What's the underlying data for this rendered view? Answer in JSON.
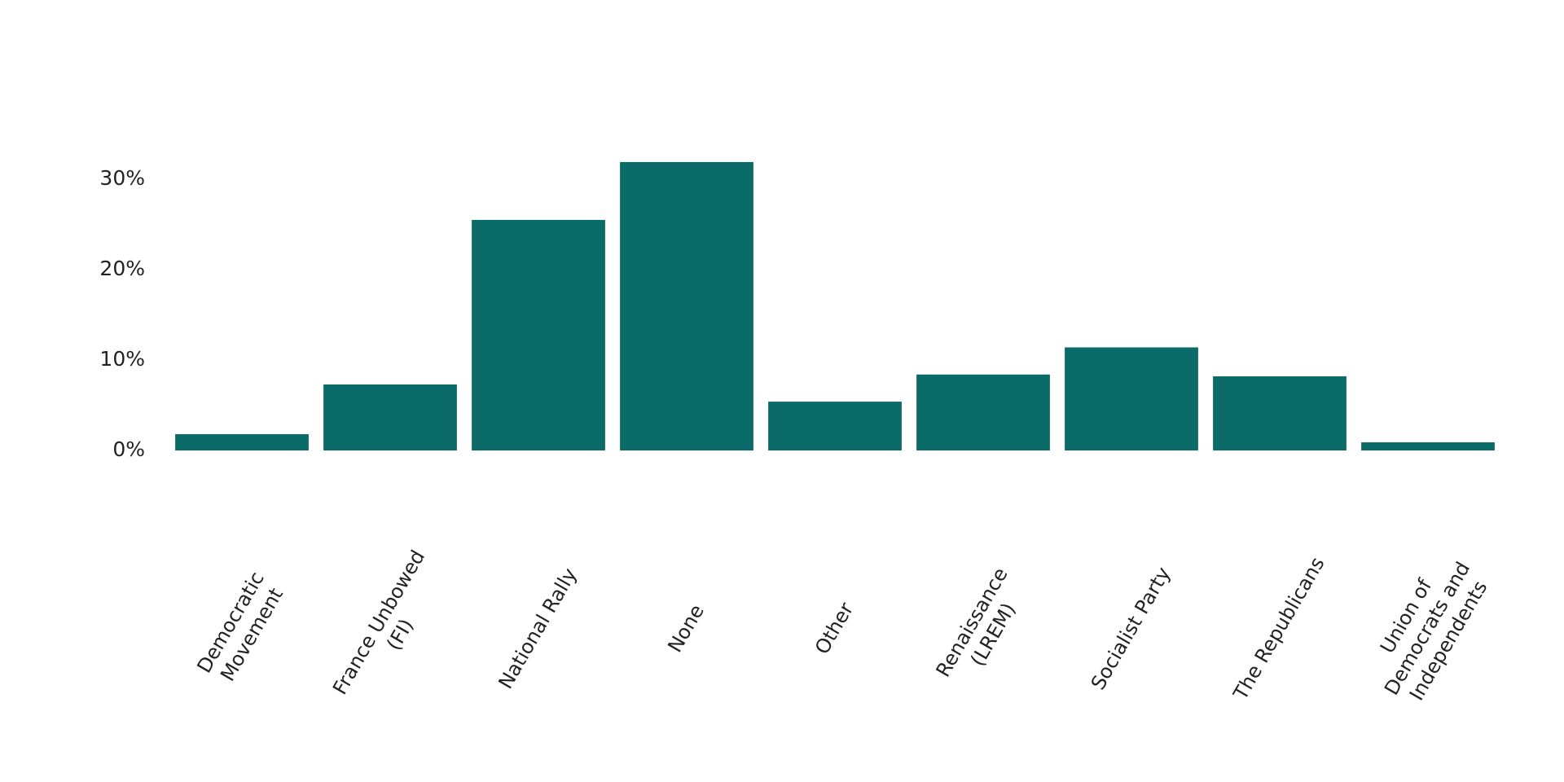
{
  "chart_data": {
    "type": "bar",
    "categories": [
      "Democratic Movement",
      "France Unbowed (FI)",
      "National Rally",
      "None",
      "Other",
      "Renaissance (LREM)",
      "Socialist Party",
      "The Republicans",
      "Union of Democrats and Independents"
    ],
    "values": [
      1.8,
      7.3,
      25.5,
      31.9,
      5.4,
      8.4,
      11.4,
      8.2,
      0.9
    ],
    "color": "#0a6b68",
    "ylim": [
      0,
      35
    ],
    "yticks": [
      {
        "value": 0,
        "label": "0%"
      },
      {
        "value": 10,
        "label": "10%"
      },
      {
        "value": 20,
        "label": "20%"
      },
      {
        "value": 30,
        "label": "30%"
      }
    ],
    "grid": false
  }
}
